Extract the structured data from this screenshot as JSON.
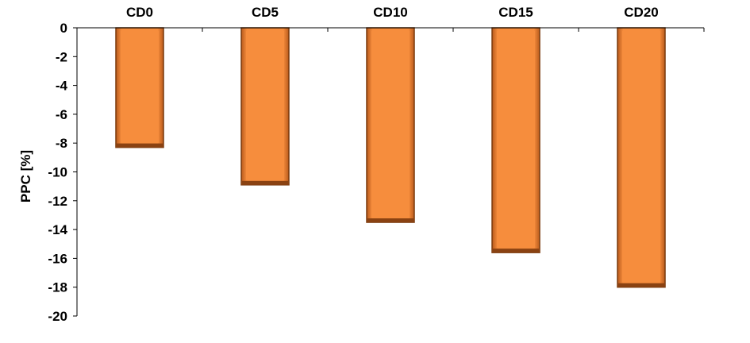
{
  "chart_data": {
    "type": "bar",
    "categories": [
      "CD0",
      "CD5",
      "CD10",
      "CD15",
      "CD20"
    ],
    "values": [
      -8.3,
      -10.9,
      -13.5,
      -15.6,
      -18.0
    ],
    "title": "",
    "xlabel": "",
    "ylabel": "PPC [%]",
    "ylim": [
      -20,
      0
    ],
    "yticks": [
      0,
      -2,
      -4,
      -6,
      -8,
      -10,
      -12,
      -14,
      -16,
      -18,
      -20
    ],
    "ytick_labels": [
      "0",
      "-2",
      "-4",
      "-6",
      "-8",
      "-10",
      "-12",
      "-14",
      "-16",
      "-18",
      "-20"
    ],
    "category_axis_position": "top",
    "grid": false,
    "legend": "none",
    "bar_color": "#F68D3D",
    "bar_edge_color": "#7A3A0D"
  }
}
